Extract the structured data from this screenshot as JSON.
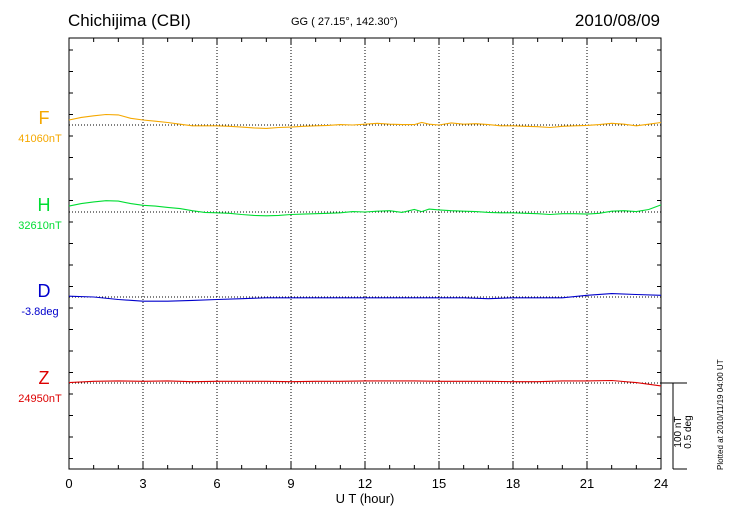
{
  "header": {
    "station": "Chichijima (CBI)",
    "coordinates": "GG ( 27.15°, 142.30°)",
    "date": "2010/08/09"
  },
  "side_note": "Plotted at 2010/11/19 04:00 UT",
  "scale_bar": {
    "line1": "100 nT",
    "line2": "0.5 deg"
  },
  "colors": {
    "F": "#f5a800",
    "H": "#00dd33",
    "D": "#0000cc",
    "Z": "#dd0000",
    "axis": "#000000",
    "grid": "#000000"
  },
  "chart_data": {
    "type": "line",
    "title": "Chichijima (CBI)",
    "xlabel": "U T (hour)",
    "ylabel": "",
    "xlim": [
      0,
      24
    ],
    "x_ticks": [
      "0",
      "3",
      "6",
      "9",
      "12",
      "15",
      "18",
      "21",
      "24"
    ],
    "grid": true,
    "series": [
      {
        "name": "F",
        "baseline_label": "41060nT",
        "color": "#f5a800",
        "unit": "nT",
        "x": [
          0,
          0.5,
          1,
          1.5,
          2,
          2.5,
          3,
          3.5,
          4,
          4.5,
          5,
          5.5,
          6,
          6.5,
          7,
          7.5,
          8,
          8.5,
          9,
          9.5,
          10,
          10.5,
          11,
          11.5,
          12,
          12.5,
          13,
          13.5,
          14,
          14.3,
          14.6,
          15,
          15.5,
          16,
          16.5,
          17,
          17.5,
          18,
          18.5,
          19,
          19.5,
          20,
          20.5,
          21,
          21.5,
          22,
          22.5,
          23,
          23.5,
          24
        ],
        "values": [
          12,
          18,
          22,
          25,
          24,
          16,
          12,
          9,
          6,
          2,
          -2,
          -2,
          -2,
          -3,
          -5,
          -7,
          -8,
          -6,
          -5,
          -3,
          -2,
          -1,
          1,
          0,
          2,
          4,
          2,
          1,
          1,
          6,
          2,
          0,
          5,
          2,
          3,
          1,
          -2,
          -2,
          -3,
          -4,
          -6,
          -3,
          -2,
          -1,
          1,
          4,
          2,
          -2,
          2,
          6
        ]
      },
      {
        "name": "H",
        "baseline_label": "32610nT",
        "color": "#00dd33",
        "unit": "nT",
        "x": [
          0,
          0.5,
          1,
          1.5,
          2,
          2.5,
          3,
          3.5,
          4,
          4.5,
          5,
          5.5,
          6,
          6.5,
          7,
          7.5,
          8,
          8.5,
          9,
          9.5,
          10,
          10.5,
          11,
          11.5,
          12,
          12.5,
          13,
          13.5,
          14,
          14.3,
          14.6,
          15,
          15.5,
          16,
          16.5,
          17,
          17.5,
          18,
          18.5,
          19,
          19.5,
          20,
          20.5,
          21,
          21.5,
          22,
          22.5,
          23,
          23.5,
          24
        ],
        "values": [
          14,
          20,
          24,
          27,
          26,
          20,
          16,
          14,
          11,
          8,
          3,
          -1,
          -2,
          -3,
          -6,
          -8,
          -9,
          -8,
          -6,
          -5,
          -4,
          -3,
          -2,
          1,
          0,
          2,
          3,
          -1,
          6,
          1,
          7,
          5,
          3,
          2,
          1,
          -1,
          -2,
          -2,
          -3,
          -4,
          -6,
          -4,
          -4,
          -5,
          -3,
          2,
          3,
          1,
          6,
          17
        ]
      },
      {
        "name": "D",
        "baseline_label": "-3.8deg",
        "color": "#0000cc",
        "unit": "deg",
        "x": [
          0,
          1,
          2,
          3,
          4,
          5,
          6,
          7,
          8,
          9,
          10,
          11,
          12,
          13,
          14,
          15,
          16,
          17,
          18,
          19,
          20,
          21,
          22,
          23,
          24
        ],
        "values": [
          0.01,
          0.0,
          -0.03,
          -0.05,
          -0.05,
          -0.04,
          -0.03,
          -0.02,
          -0.01,
          -0.01,
          -0.01,
          -0.01,
          -0.01,
          -0.01,
          -0.01,
          -0.01,
          -0.01,
          -0.02,
          -0.01,
          -0.01,
          -0.01,
          0.02,
          0.04,
          0.03,
          0.02
        ]
      },
      {
        "name": "Z",
        "baseline_label": "24950nT",
        "color": "#dd0000",
        "unit": "nT",
        "x": [
          0,
          1,
          2,
          3,
          4,
          5,
          6,
          7,
          8,
          9,
          10,
          11,
          12,
          13,
          14,
          15,
          16,
          17,
          18,
          19,
          20,
          21,
          22,
          23,
          24
        ],
        "values": [
          1,
          4,
          5,
          4,
          5,
          3,
          4,
          4,
          4,
          3,
          4,
          4,
          5,
          5,
          5,
          4,
          4,
          4,
          3,
          3,
          5,
          5,
          6,
          1,
          -7
        ]
      }
    ]
  }
}
